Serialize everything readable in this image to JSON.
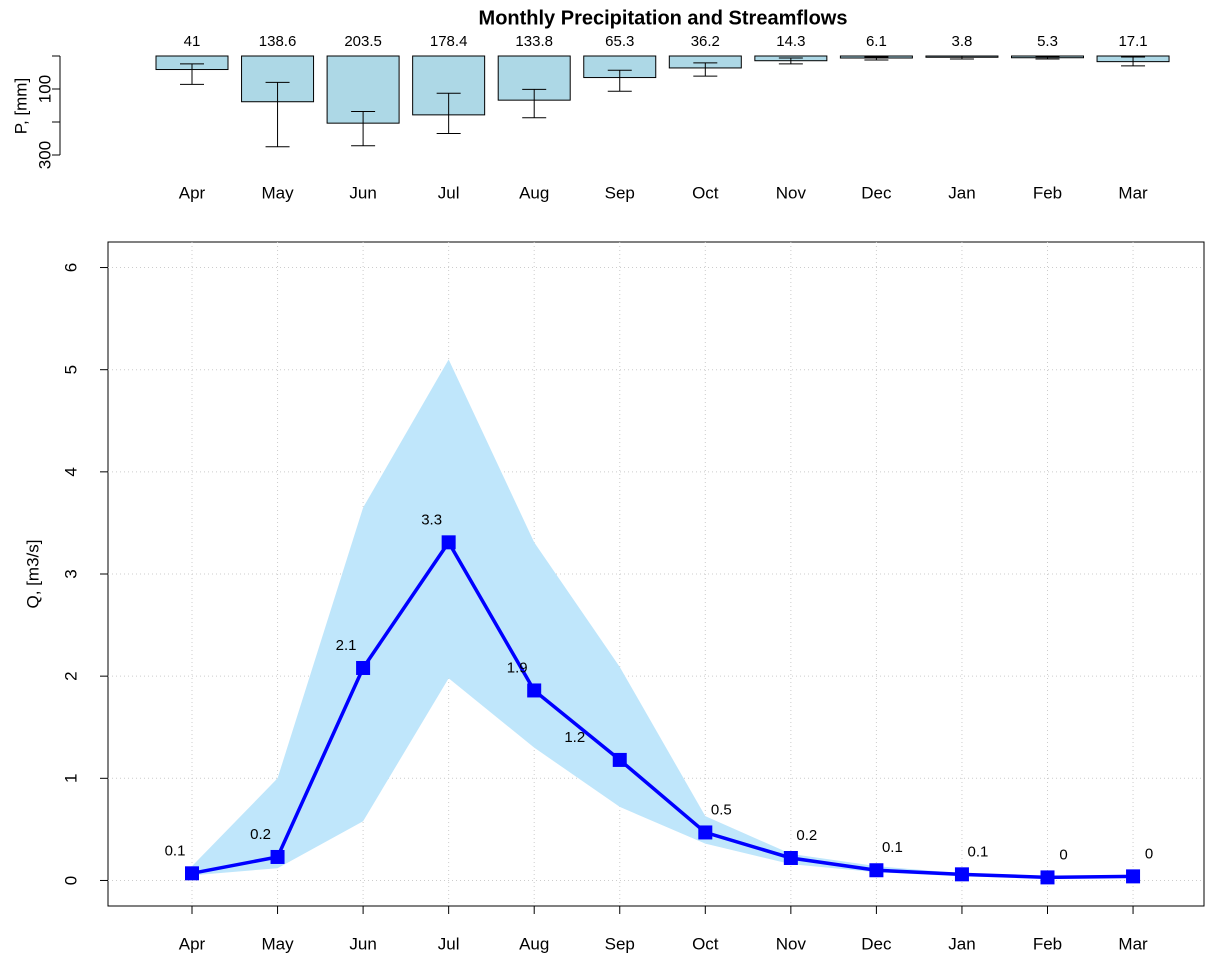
{
  "chart_data": [
    {
      "type": "bar",
      "title": "Monthly Precipitation and Streamflows",
      "y_label": "P, [mm]",
      "categories": [
        "Apr",
        "May",
        "Jun",
        "Jul",
        "Aug",
        "Sep",
        "Oct",
        "Nov",
        "Dec",
        "Jan",
        "Feb",
        "Mar"
      ],
      "values": [
        41,
        138.6,
        203.5,
        178.4,
        133.8,
        65.3,
        36.2,
        14.3,
        6.1,
        3.8,
        5.3,
        17.1
      ],
      "whisker_low": [
        24,
        80,
        168,
        113,
        101,
        43,
        21,
        6,
        3,
        0,
        2,
        3
      ],
      "whisker_high": [
        86,
        275,
        272,
        235,
        187,
        107,
        61,
        24,
        12,
        9,
        9,
        30
      ],
      "color": "#add8e6",
      "ylim": [
        0,
        300
      ],
      "y_inverted": true,
      "yticks": [
        {
          "value": 0,
          "label": null
        },
        100,
        {
          "value": 200,
          "label": null
        },
        300
      ]
    },
    {
      "type": "line",
      "y_label": "Q, [m3/s]",
      "categories": [
        "Apr",
        "May",
        "Jun",
        "Jul",
        "Aug",
        "Sep",
        "Oct",
        "Nov",
        "Dec",
        "Jan",
        "Feb",
        "Mar"
      ],
      "series": [
        {
          "color": "#0000ff",
          "values": [
            0.07,
            0.23,
            2.08,
            3.31,
            1.86,
            1.18,
            0.47,
            0.22,
            0.1,
            0.06,
            0.03,
            0.04
          ],
          "value_labels": [
            "0.1",
            "0.2",
            "2.1",
            "3.3",
            "1.9",
            "1.2",
            "0.5",
            "0.2",
            "0.1",
            "0.1",
            "0",
            "0"
          ],
          "band_low": [
            0.05,
            0.12,
            0.58,
            1.98,
            1.3,
            0.72,
            0.36,
            0.16,
            0.08,
            0.04,
            0.02,
            0.03
          ],
          "band_high": [
            0.14,
            1.0,
            3.65,
            5.1,
            3.31,
            2.09,
            0.63,
            0.26,
            0.14,
            0.07,
            0.04,
            0.05
          ],
          "band_color": "#bfe6fb"
        }
      ],
      "ylim": [
        -0.25,
        6.25
      ],
      "yticks": [
        0,
        1,
        2,
        3,
        4,
        5,
        6
      ],
      "grid": true
    }
  ]
}
